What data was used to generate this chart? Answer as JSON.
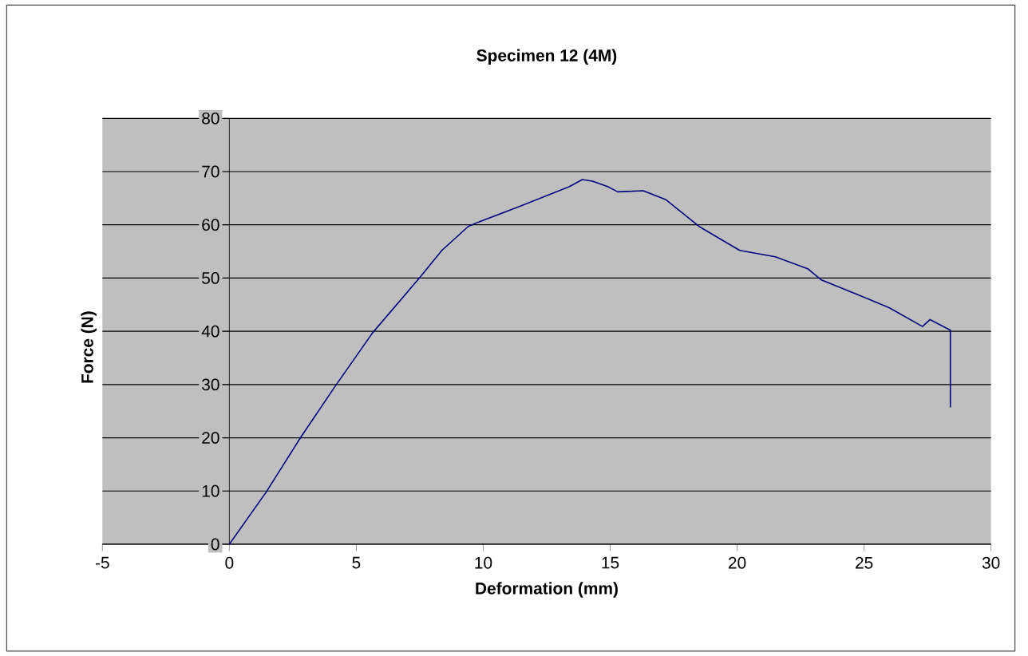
{
  "chart_data": {
    "type": "line",
    "title": "Specimen 12 (4M)",
    "xlabel": "Deformation (mm)",
    "ylabel": "Force (N)",
    "x": [
      0,
      1.45,
      2.8,
      4.17,
      5.64,
      7.52,
      8.37,
      9.41,
      9.8,
      11.3,
      13.4,
      13.9,
      14.3,
      14.9,
      15.3,
      16.3,
      17.2,
      18.5,
      20.1,
      21.5,
      22.8,
      23.3,
      25.1,
      26.0,
      27.3,
      27.6,
      28.4,
      28.4
    ],
    "series": [
      {
        "color": "#000080",
        "values": [
          0,
          9.8,
          20,
          29.7,
          39.7,
          50.2,
          55.2,
          59.7,
          60.5,
          63.2,
          67.2,
          68.5,
          68.2,
          67.2,
          66.2,
          66.4,
          64.7,
          59.7,
          55.2,
          54,
          51.7,
          49.7,
          46.2,
          44.4,
          40.9,
          42.2,
          40.2,
          25.7
        ]
      }
    ],
    "xlim": [
      -5,
      30
    ],
    "xticks": [
      -5,
      0,
      5,
      10,
      15,
      20,
      25,
      30
    ],
    "ylim": [
      0,
      80
    ],
    "yticks": [
      0,
      10,
      20,
      30,
      40,
      50,
      60,
      70,
      80
    ],
    "grid": "y",
    "marker": "none",
    "line_style": "solid"
  }
}
